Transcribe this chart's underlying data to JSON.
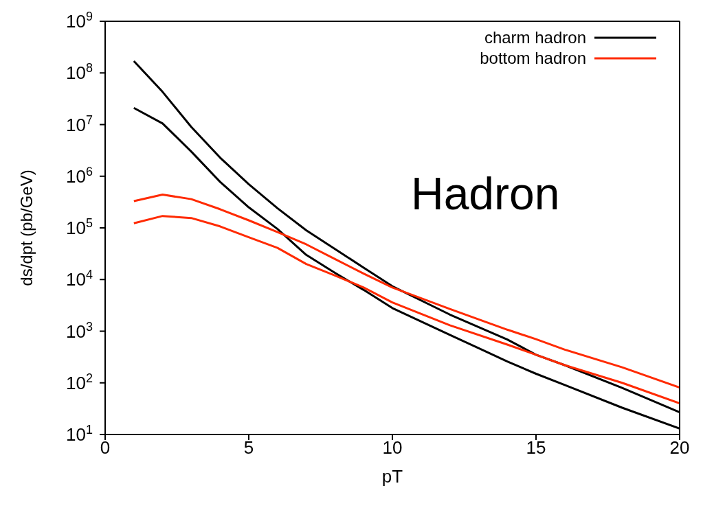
{
  "chart_data": {
    "type": "line",
    "xlabel": "pT",
    "ylabel": "ds/dpt (pb/GeV)",
    "log": "y",
    "legend": "top right",
    "marker": "none",
    "line_style": "solid",
    "annotations": [
      "Hadron"
    ],
    "xlim": [
      0,
      20
    ],
    "xticks": [
      0,
      5,
      10,
      15,
      20
    ],
    "ylim": [
      10,
      1000000000
    ],
    "yticks": [
      {
        "value": 10,
        "label": "10$^{1}$"
      },
      {
        "value": 100,
        "label": "10$^{2}$"
      },
      {
        "value": 1000,
        "label": "10$^{3}$"
      },
      {
        "value": 10000,
        "label": "10$^{4}$"
      },
      {
        "value": 100000,
        "label": "10$^{5}$"
      },
      {
        "value": 1000000,
        "label": "10$^{6}$"
      },
      {
        "value": 10000000,
        "label": "10$^{7}$"
      },
      {
        "value": 100000000,
        "label": "10$^{8}$"
      },
      {
        "value": 1000000000,
        "label": "10$^{9}$"
      }
    ],
    "x": [
      1,
      2,
      3,
      4,
      5,
      6,
      7,
      8,
      9,
      10,
      12,
      14,
      15,
      16,
      18,
      20
    ],
    "series": [
      {
        "name": "charm hadron",
        "color": "#000000",
        "values": [
          170000000,
          43000000,
          9000000,
          2300000,
          700000,
          240000,
          90000,
          39000,
          17000,
          7400,
          2100,
          690,
          350,
          220,
          80,
          27
        ]
      },
      {
        "color": "#000000",
        "values": [
          21000000,
          10500000,
          3000000,
          780000,
          250000,
          95000,
          30000,
          13500,
          6300,
          2800,
          850,
          260,
          150,
          91,
          33,
          13
        ]
      },
      {
        "name": "bottom hadron",
        "color": "#ff2a00",
        "values": [
          330000,
          440000,
          360000,
          230000,
          140000,
          83000,
          48000,
          25000,
          13000,
          7000,
          2700,
          1070,
          700,
          440,
          200,
          81
        ]
      },
      {
        "color": "#ff2a00",
        "values": [
          123000,
          170000,
          155000,
          107000,
          66000,
          41000,
          20000,
          12000,
          7000,
          3600,
          1300,
          550,
          350,
          220,
          100,
          40
        ]
      }
    ]
  }
}
